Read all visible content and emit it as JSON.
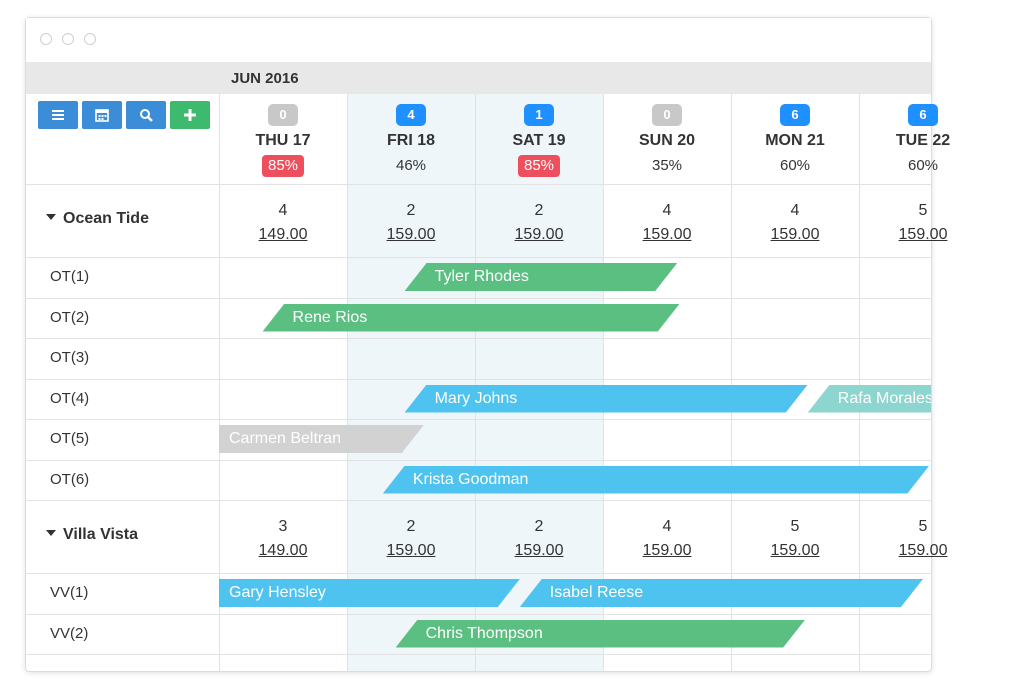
{
  "header": {
    "month": "JUN 2016"
  },
  "toolbar": [
    {
      "name": "menu-button",
      "icon": "menu-icon",
      "color": "#3a8dd6"
    },
    {
      "name": "calendar-button",
      "icon": "calendar-icon",
      "color": "#3a8dd6"
    },
    {
      "name": "search-button",
      "icon": "search-icon",
      "color": "#3a8dd6"
    },
    {
      "name": "add-button",
      "icon": "plus-icon",
      "color": "#3dba6e"
    }
  ],
  "days": [
    {
      "label": "THU 17",
      "count": "0",
      "count_color": "#c8c8c8",
      "pct": "85%",
      "pct_alert": true
    },
    {
      "label": "FRI 18",
      "count": "4",
      "count_color": "#1e90ff",
      "pct": "46%",
      "pct_alert": false
    },
    {
      "label": "SAT 19",
      "count": "1",
      "count_color": "#1e90ff",
      "pct": "85%",
      "pct_alert": true
    },
    {
      "label": "SUN 20",
      "count": "0",
      "count_color": "#c8c8c8",
      "pct": "35%",
      "pct_alert": false
    },
    {
      "label": "MON 21",
      "count": "6",
      "count_color": "#1e90ff",
      "pct": "60%",
      "pct_alert": false
    },
    {
      "label": "TUE 22",
      "count": "6",
      "count_color": "#1e90ff",
      "pct": "60%",
      "pct_alert": false
    }
  ],
  "colors": {
    "alert": "#ee4f5c",
    "green": "#5cbf82",
    "blue": "#4fc3f0",
    "teal": "#8dd6cf",
    "grey": "#d2d2d2"
  },
  "groups": [
    {
      "name": "Ocean Tide",
      "cells": [
        {
          "count": "4",
          "price": "149.00"
        },
        {
          "count": "2",
          "price": "159.00"
        },
        {
          "count": "2",
          "price": "159.00"
        },
        {
          "count": "4",
          "price": "159.00"
        },
        {
          "count": "4",
          "price": "159.00"
        },
        {
          "count": "5",
          "price": "159.00"
        }
      ],
      "rooms": [
        {
          "label": "OT(1)",
          "bookings": [
            {
              "guest": "Tyler Rhodes",
              "color": "green"
            }
          ]
        },
        {
          "label": "OT(2)",
          "bookings": [
            {
              "guest": "Rene Rios",
              "color": "green"
            }
          ]
        },
        {
          "label": "OT(3)",
          "bookings": []
        },
        {
          "label": "OT(4)",
          "bookings": [
            {
              "guest": "Mary Johns",
              "color": "blue"
            },
            {
              "guest": "Rafa Morales",
              "color": "teal"
            }
          ]
        },
        {
          "label": "OT(5)",
          "bookings": [
            {
              "guest": "Carmen Beltran",
              "color": "grey"
            }
          ]
        },
        {
          "label": "OT(6)",
          "bookings": [
            {
              "guest": "Krista Goodman",
              "color": "blue"
            }
          ]
        }
      ]
    },
    {
      "name": "Villa Vista",
      "cells": [
        {
          "count": "3",
          "price": "149.00"
        },
        {
          "count": "2",
          "price": "159.00"
        },
        {
          "count": "2",
          "price": "159.00"
        },
        {
          "count": "4",
          "price": "159.00"
        },
        {
          "count": "5",
          "price": "159.00"
        },
        {
          "count": "5",
          "price": "159.00"
        }
      ],
      "rooms": [
        {
          "label": "VV(1)",
          "bookings": [
            {
              "guest": "Gary Hensley",
              "color": "blue"
            },
            {
              "guest": "Isabel Reese",
              "color": "blue"
            }
          ]
        },
        {
          "label": "VV(2)",
          "bookings": [
            {
              "guest": "Chris Thompson",
              "color": "green"
            }
          ]
        }
      ]
    }
  ]
}
